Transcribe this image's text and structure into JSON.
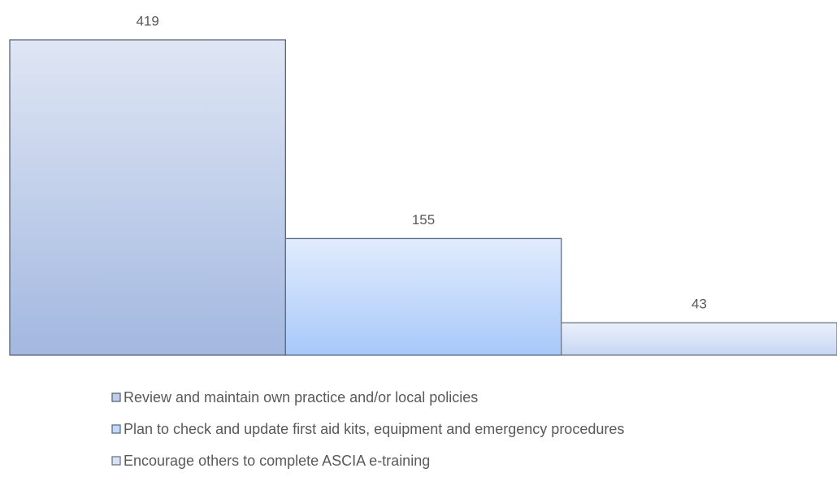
{
  "chart_data": {
    "type": "bar",
    "series": [
      {
        "name": "Review and maintain own practice and/or local policies",
        "color": "#a3b8e0",
        "values": [
          419
        ]
      },
      {
        "name": "Plan to check and update first aid kits, equipment and emergency procedures",
        "color": "#a8c8f9",
        "values": [
          155
        ]
      },
      {
        "name": "Encourage others to complete ASCIA e-training",
        "color": "#c6d6f3",
        "values": [
          43
        ]
      }
    ],
    "ylim": [
      0,
      450
    ],
    "legend": "bottom"
  }
}
